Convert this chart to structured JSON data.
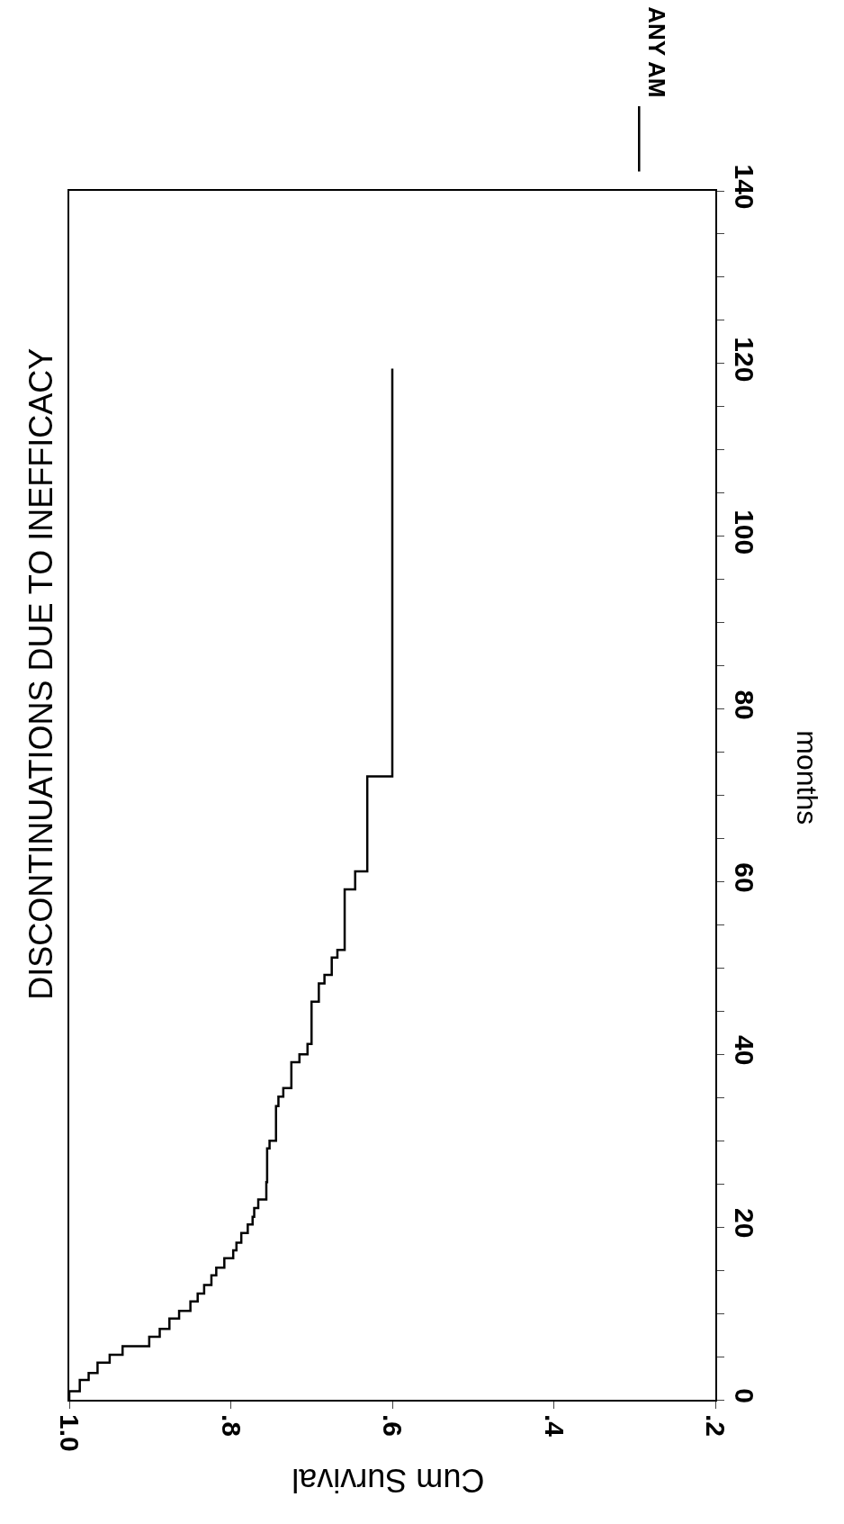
{
  "chart_data": {
    "type": "step",
    "title": "DISCONTINUATIONS DUE TO INEFFICACY",
    "xlabel": "Cum Survival",
    "ylabel": "months",
    "x": [
      1.0,
      0.987,
      0.976,
      0.965,
      0.95,
      0.934,
      0.901,
      0.888,
      0.876,
      0.864,
      0.85,
      0.841,
      0.833,
      0.824,
      0.818,
      0.808,
      0.797,
      0.793,
      0.787,
      0.779,
      0.773,
      0.771,
      0.766,
      0.756,
      0.755,
      0.752,
      0.744,
      0.741,
      0.735,
      0.725,
      0.715,
      0.705,
      0.7,
      0.691,
      0.684,
      0.675,
      0.668,
      0.659,
      0.646,
      0.631,
      0.6,
      0.6
    ],
    "series": [
      {
        "name": "ANY AM",
        "color": "#000000",
        "values": [
          0,
          1.0,
          2.3,
          3.1,
          4.3,
          5.2,
          6.2,
          7.3,
          8.2,
          9.4,
          10.3,
          11.4,
          12.3,
          13.3,
          14.4,
          15.3,
          16.4,
          17.3,
          18.2,
          19.3,
          20.3,
          21.2,
          22.2,
          23.2,
          25.2,
          29.1,
          30.0,
          34.0,
          35.1,
          36.1,
          39.1,
          40.0,
          41.2,
          46.1,
          48.2,
          49.2,
          51.2,
          52.1,
          59.1,
          61.2,
          72.2,
          119.4
        ]
      }
    ],
    "ylim": [
      0,
      140
    ],
    "yticks": [
      0,
      {
        "value": 5,
        "label": null
      },
      {
        "value": 10,
        "label": null
      },
      {
        "value": 15,
        "label": null
      },
      20,
      {
        "value": 25,
        "label": null
      },
      {
        "value": 30,
        "label": null
      },
      {
        "value": 35,
        "label": null
      },
      40,
      {
        "value": 45,
        "label": null
      },
      {
        "value": 50,
        "label": null
      },
      {
        "value": 55,
        "label": null
      },
      60,
      {
        "value": 65,
        "label": null
      },
      {
        "value": 70,
        "label": null
      },
      {
        "value": 75,
        "label": null
      },
      80,
      {
        "value": 85,
        "label": null
      },
      {
        "value": 90,
        "label": null
      },
      {
        "value": 95,
        "label": null
      },
      100,
      {
        "value": 105,
        "label": null
      },
      {
        "value": 110,
        "label": null
      },
      {
        "value": 115,
        "label": null
      },
      120,
      {
        "value": 125,
        "label": null
      },
      {
        "value": 130,
        "label": null
      },
      {
        "value": 135,
        "label": null
      },
      140
    ],
    "xlim": [
      1.0,
      0.2
    ],
    "xticks": [
      {
        "value": 1.0,
        "label": "1.0"
      },
      {
        "value": 0.8,
        "label": ".8"
      },
      {
        "value": 0.6,
        "label": ".6"
      },
      {
        "value": 0.4,
        "label": ".4"
      },
      {
        "value": 0.2,
        "label": ".2"
      }
    ],
    "legend": "top right",
    "marker": "none",
    "line_style": "solid",
    "grid": false
  }
}
